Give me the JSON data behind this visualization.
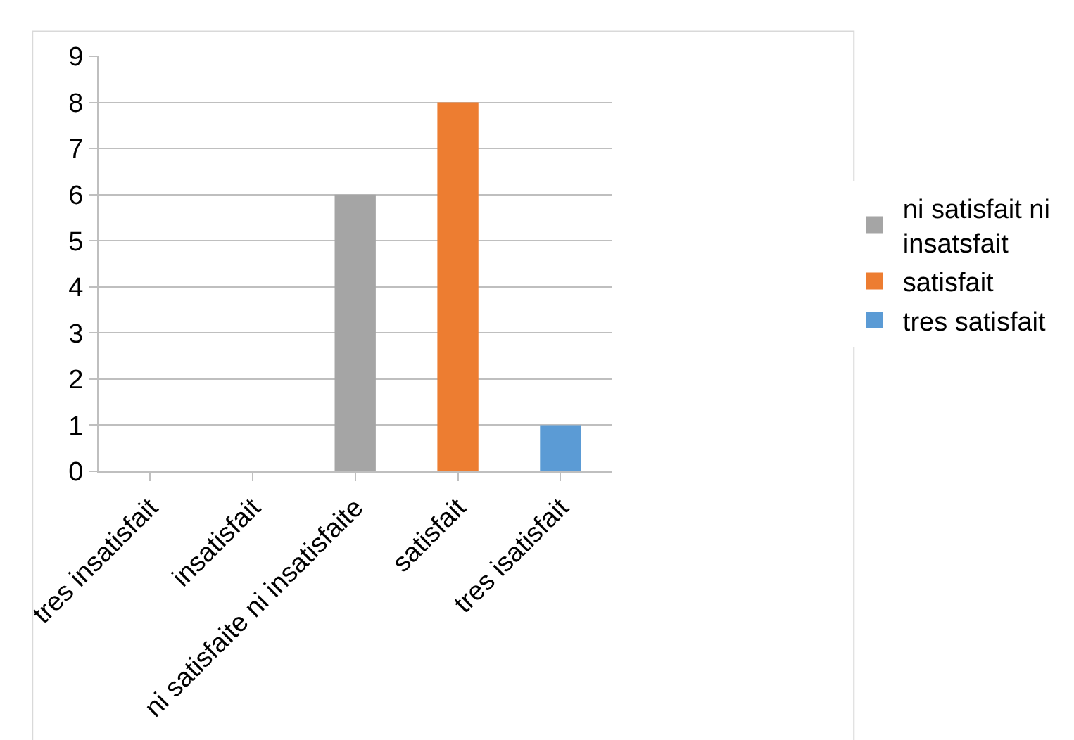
{
  "chart_data": {
    "type": "bar",
    "categories": [
      "tres insatisfait",
      "insatisfait",
      "ni satisfaite ni insatisfaite",
      "satisfait",
      "tres isatisfait"
    ],
    "series": [
      {
        "name": "ni satisfait ni insatsfait",
        "color": "#a5a5a5",
        "values": [
          null,
          null,
          6,
          null,
          null
        ]
      },
      {
        "name": "satisfait",
        "color": "#ed7d31",
        "values": [
          null,
          null,
          null,
          8,
          null
        ]
      },
      {
        "name": "tres satisfait",
        "color": "#5b9bd5",
        "values": [
          null,
          null,
          null,
          null,
          1
        ]
      }
    ],
    "ylim": [
      0,
      9
    ],
    "yticks": [
      0,
      1,
      2,
      3,
      4,
      5,
      6,
      7,
      8,
      9
    ],
    "grid": "y",
    "legend": "right"
  }
}
